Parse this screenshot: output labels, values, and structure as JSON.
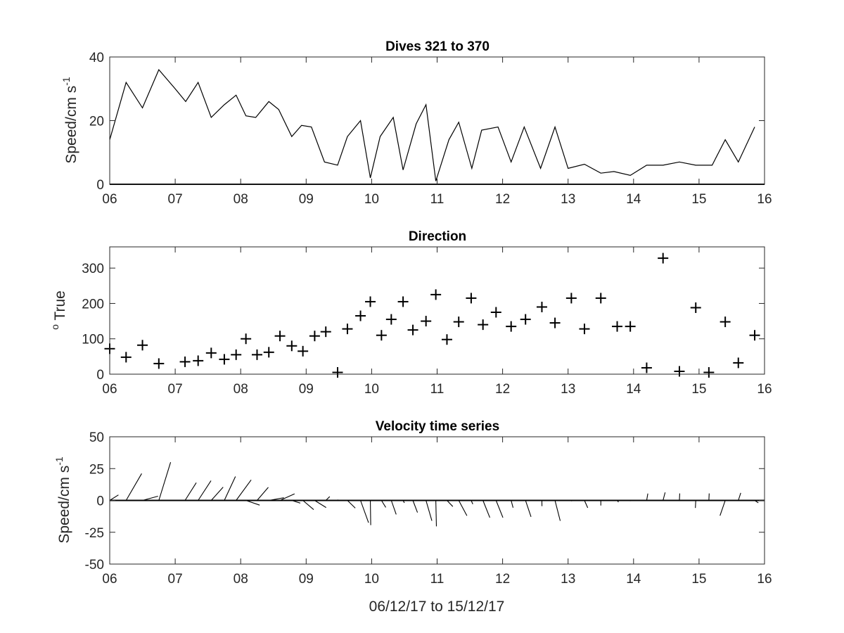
{
  "chart_data": [
    {
      "type": "line",
      "title": "Dives 321 to 370",
      "ylabel": {
        "main": "Speed/cm s",
        "sup": "-1"
      },
      "xlabel": "",
      "xlim": [
        6,
        16
      ],
      "ylim": [
        0,
        40
      ],
      "xticks": [
        "06",
        "07",
        "08",
        "09",
        "10",
        "11",
        "12",
        "13",
        "14",
        "15",
        "16"
      ],
      "yticks": [
        "0",
        "20",
        "40"
      ],
      "grid": false,
      "x": [
        6.0,
        6.25,
        6.5,
        6.75,
        7.0,
        7.16,
        7.35,
        7.55,
        7.75,
        7.93,
        8.08,
        8.23,
        8.43,
        8.58,
        8.78,
        8.93,
        9.08,
        9.28,
        9.48,
        9.63,
        9.83,
        9.98,
        10.13,
        10.33,
        10.48,
        10.68,
        10.83,
        10.98,
        11.18,
        11.33,
        11.53,
        11.68,
        11.93,
        12.13,
        12.33,
        12.58,
        12.8,
        13.0,
        13.25,
        13.5,
        13.7,
        13.95,
        14.2,
        14.45,
        14.7,
        14.95,
        15.2,
        15.4,
        15.6,
        15.85
      ],
      "values": [
        14,
        32,
        24,
        36,
        30,
        26,
        32,
        21,
        25,
        28,
        21.5,
        21,
        26,
        23.5,
        15,
        18.5,
        18,
        7,
        6,
        15,
        20,
        2,
        15,
        21,
        4.5,
        19,
        25,
        1,
        14,
        19.5,
        5,
        17,
        18,
        7,
        18,
        5,
        18,
        5,
        6.3,
        3.5,
        4,
        2.8,
        6,
        6,
        7,
        6,
        6,
        14,
        7,
        18
      ]
    },
    {
      "type": "scatter",
      "title": "Direction",
      "ylabel": {
        "main": " True",
        "sup": "o"
      },
      "xlabel": "",
      "xlim": [
        6,
        16
      ],
      "ylim": [
        0,
        360
      ],
      "xticks": [
        "06",
        "07",
        "08",
        "09",
        "10",
        "11",
        "12",
        "13",
        "14",
        "15",
        "16"
      ],
      "yticks": [
        "0",
        "100",
        "200",
        "300"
      ],
      "grid": false,
      "x": [
        6.0,
        6.25,
        6.5,
        6.75,
        7.15,
        7.35,
        7.55,
        7.75,
        7.93,
        8.08,
        8.25,
        8.43,
        8.6,
        8.78,
        8.95,
        9.13,
        9.3,
        9.48,
        9.63,
        9.83,
        9.98,
        10.15,
        10.3,
        10.48,
        10.63,
        10.83,
        10.98,
        11.15,
        11.33,
        11.52,
        11.7,
        11.9,
        12.13,
        12.35,
        12.6,
        12.8,
        13.05,
        13.25,
        13.5,
        13.75,
        13.95,
        14.2,
        14.45,
        14.7,
        14.95,
        15.15,
        15.4,
        15.6,
        15.85
      ],
      "values": [
        72,
        48,
        82,
        30,
        35,
        38,
        60,
        42,
        55,
        100,
        55,
        62,
        108,
        80,
        65,
        108,
        120,
        5,
        128,
        165,
        205,
        110,
        155,
        205,
        125,
        150,
        225,
        98,
        148,
        215,
        140,
        175,
        135,
        155,
        190,
        145,
        215,
        128,
        215,
        135,
        135,
        18,
        328,
        8,
        188,
        5,
        148,
        32,
        110
      ]
    },
    {
      "type": "stick",
      "title": "Velocity time series",
      "ylabel": {
        "main": "Speed/cm s",
        "sup": "-1"
      },
      "xlabel": "06/12/17 to 15/12/17",
      "xlim": [
        6,
        16
      ],
      "ylim": [
        -50,
        50
      ],
      "xticks": [
        "06",
        "07",
        "08",
        "09",
        "10",
        "11",
        "12",
        "13",
        "14",
        "15",
        "16"
      ],
      "yticks": [
        "-50",
        "-25",
        "0",
        "25",
        "50"
      ],
      "grid": false,
      "stick_x_days_per_unit": 0.01,
      "x": [
        6.0,
        6.25,
        6.5,
        6.75,
        7.15,
        7.35,
        7.55,
        7.75,
        7.93,
        8.08,
        8.25,
        8.43,
        8.6,
        8.78,
        8.95,
        9.13,
        9.3,
        9.48,
        9.63,
        9.83,
        9.98,
        10.15,
        10.3,
        10.48,
        10.63,
        10.83,
        10.98,
        11.15,
        11.33,
        11.52,
        11.7,
        11.9,
        12.13,
        12.35,
        12.6,
        12.8,
        13.05,
        13.25,
        13.5,
        13.75,
        13.95,
        14.2,
        14.45,
        14.7,
        14.95,
        15.15,
        15.4,
        15.6,
        15.85
      ],
      "u": [
        13.3,
        23.8,
        23.8,
        18,
        17.2,
        19.7,
        18.2,
        17,
        23,
        21,
        17.2,
        23,
        22.3,
        13,
        16.5,
        17.5,
        6,
        0.6,
        12,
        12.3,
        0.6,
        6.6,
        7.5,
        2,
        7,
        9,
        0.9,
        9,
        12.5,
        2.5,
        10.5,
        10.5,
        3,
        8.4,
        0.1,
        8,
        0.9,
        5,
        0,
        2,
        0.2,
        1.8,
        3.2,
        0.5,
        -0.6,
        0.5,
        -8,
        3.7,
        5.6
      ],
      "v": [
        4.3,
        21.1,
        3.3,
        30,
        13.9,
        15.5,
        10.4,
        18.8,
        16.1,
        -3.7,
        10.3,
        2.1,
        5.2,
        -2.1,
        -7.2,
        -5.6,
        3,
        0.6,
        -6,
        -17.5,
        -19.4,
        -5.5,
        -11,
        -1.9,
        -9.5,
        -16,
        -20.4,
        -4.8,
        -12,
        -2.9,
        -13.5,
        -13.5,
        -5.7,
        -12.9,
        -4.5,
        -16,
        -0.6,
        -5.8,
        -4,
        -1.3,
        -0.6,
        5.4,
        6.3,
        5.5,
        -5.9,
        5.5,
        -12,
        5.9,
        -1.9
      ]
    }
  ]
}
